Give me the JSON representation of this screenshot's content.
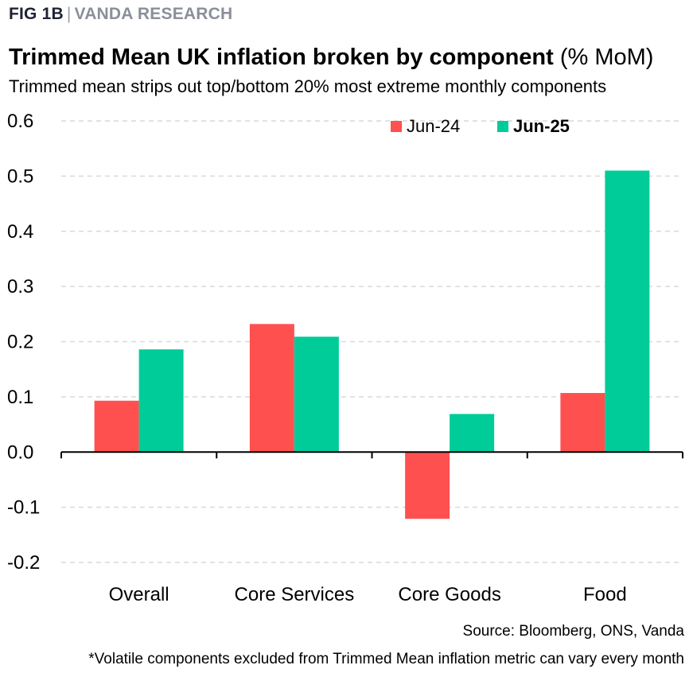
{
  "header": {
    "fig_number": "FIG 1B",
    "separator": "|",
    "organization": "VANDA RESEARCH",
    "title_main": "Trimmed Mean UK inflation broken by component",
    "title_unit": "(% MoM)",
    "subtitle": "Trimmed mean strips out top/bottom 20% most extreme monthly components"
  },
  "footer": {
    "source": "Source: Bloomberg, ONS, Vanda",
    "footnote": "*Volatile components excluded from Trimmed Mean inflation metric can vary every month"
  },
  "chart_data": {
    "type": "bar",
    "title": "Trimmed Mean UK inflation broken by component (% MoM)",
    "xlabel": "",
    "ylabel": "",
    "categories": [
      "Overall",
      "Core Services",
      "Core Goods",
      "Food"
    ],
    "series": [
      {
        "name": "Jun-24",
        "color": "#ff5050",
        "values": [
          0.093,
          0.232,
          -0.121,
          0.107
        ]
      },
      {
        "name": "Jun-25",
        "color": "#00cc99",
        "values": [
          0.186,
          0.209,
          0.069,
          0.51
        ]
      }
    ],
    "ylim": [
      -0.2,
      0.6
    ],
    "yticks": [
      "0.6",
      "0.5",
      "0.4",
      "0.3",
      "0.2",
      "0.1",
      "0.0",
      "-0.1",
      "-0.2"
    ],
    "ytick_values": [
      0.6,
      0.5,
      0.4,
      0.3,
      0.2,
      0.1,
      0.0,
      -0.1,
      -0.2
    ],
    "grid": true,
    "legend_position": "top-right"
  }
}
